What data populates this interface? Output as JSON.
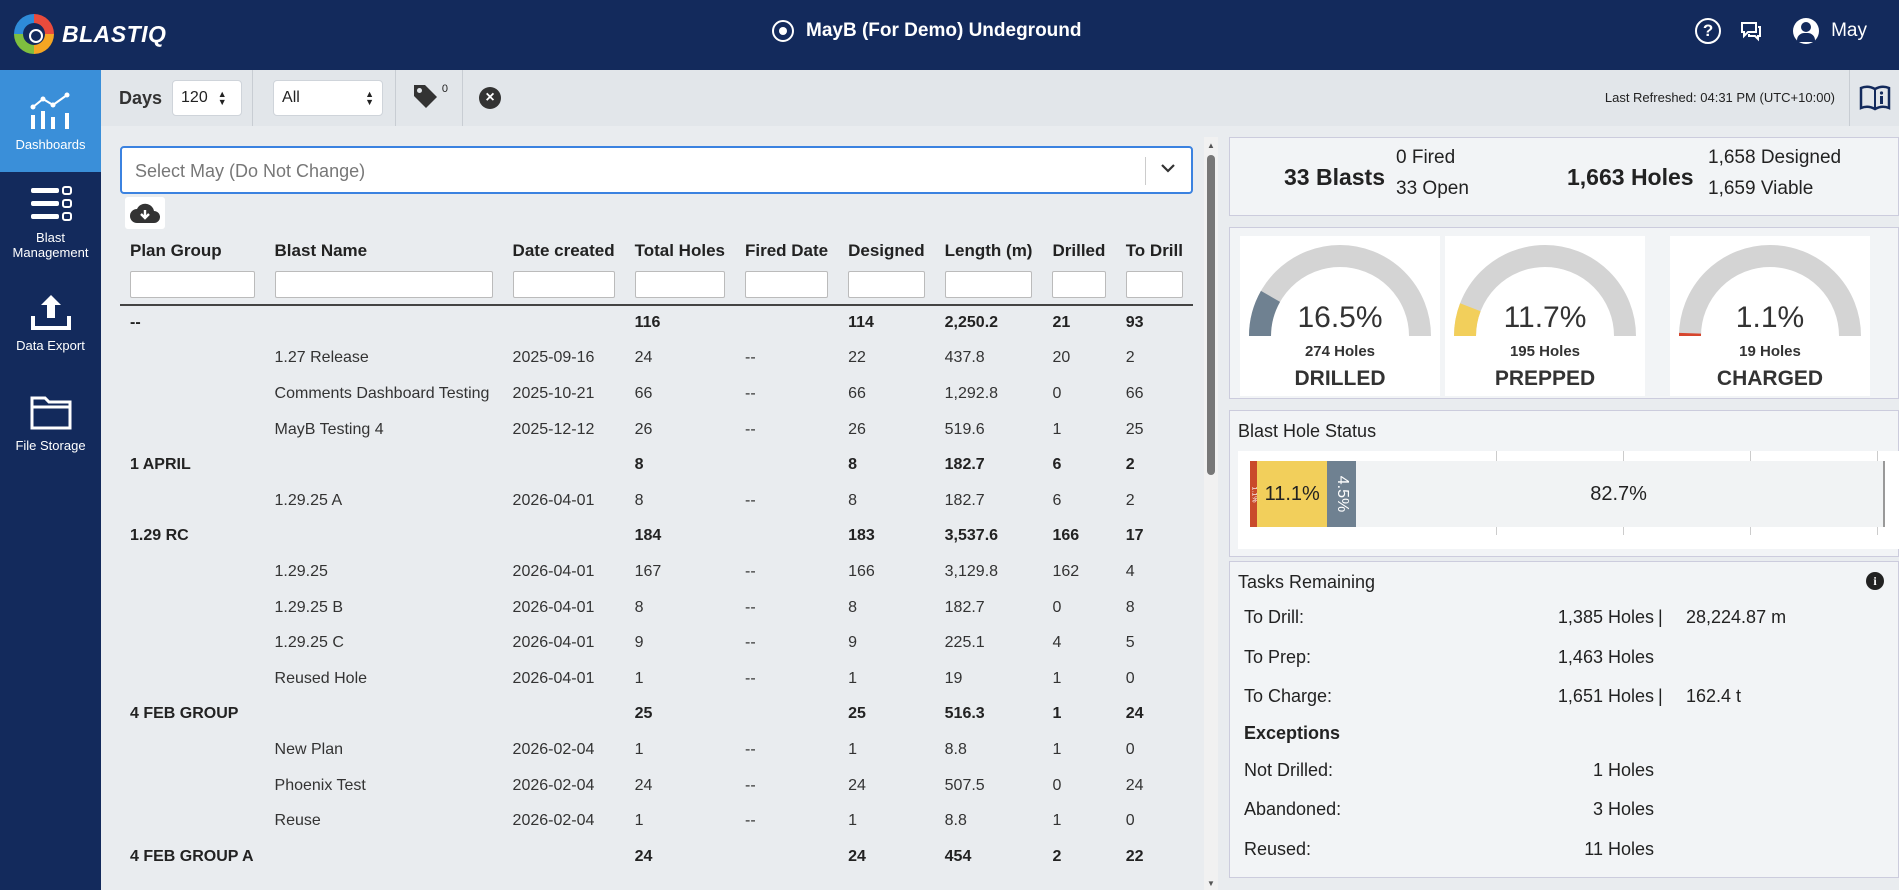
{
  "header": {
    "brand": "BLASTIQ",
    "site_name": "MayB (For Demo) Undeground",
    "user_name": "May"
  },
  "sidebar": {
    "items": [
      {
        "label": "Dashboards",
        "icon": "dashboards-icon",
        "active": true
      },
      {
        "label": "Blast Management",
        "icon": "blast-management-icon",
        "active": false
      },
      {
        "label": "Data Export",
        "icon": "upload-icon",
        "active": false
      },
      {
        "label": "File Storage",
        "icon": "folder-icon",
        "active": false
      }
    ]
  },
  "filters": {
    "days_label": "Days",
    "days_value": "120",
    "status_value": "All",
    "tag_count": "0",
    "last_refreshed": "Last Refreshed: 04:31 PM (UTC+10:00)"
  },
  "table": {
    "select_placeholder": "Select May (Do Not Change)",
    "columns": [
      "Plan Group",
      "Blast Name",
      "Date created",
      "Total Holes",
      "Fired Date",
      "Designed",
      "Length (m)",
      "Drilled",
      "To Drill"
    ],
    "rows": [
      {
        "group": true,
        "cells": [
          "--",
          "",
          "",
          "116",
          "",
          "114",
          "2,250.2",
          "21",
          "93"
        ]
      },
      {
        "group": false,
        "cells": [
          "",
          "1.27 Release",
          "2025-09-16",
          "24",
          "--",
          "22",
          "437.8",
          "20",
          "2"
        ]
      },
      {
        "group": false,
        "cells": [
          "",
          "Comments Dashboard Testing",
          "2025-10-21",
          "66",
          "--",
          "66",
          "1,292.8",
          "0",
          "66"
        ]
      },
      {
        "group": false,
        "cells": [
          "",
          "MayB Testing 4",
          "2025-12-12",
          "26",
          "--",
          "26",
          "519.6",
          "1",
          "25"
        ]
      },
      {
        "group": true,
        "cells": [
          "1 APRIL",
          "",
          "",
          "8",
          "",
          "8",
          "182.7",
          "6",
          "2"
        ]
      },
      {
        "group": false,
        "cells": [
          "",
          "1.29.25 A",
          "2026-04-01",
          "8",
          "--",
          "8",
          "182.7",
          "6",
          "2"
        ]
      },
      {
        "group": true,
        "cells": [
          "1.29 RC",
          "",
          "",
          "184",
          "",
          "183",
          "3,537.6",
          "166",
          "17"
        ]
      },
      {
        "group": false,
        "cells": [
          "",
          "1.29.25",
          "2026-04-01",
          "167",
          "--",
          "166",
          "3,129.8",
          "162",
          "4"
        ]
      },
      {
        "group": false,
        "cells": [
          "",
          "1.29.25 B",
          "2026-04-01",
          "8",
          "--",
          "8",
          "182.7",
          "0",
          "8"
        ]
      },
      {
        "group": false,
        "cells": [
          "",
          "1.29.25 C",
          "2026-04-01",
          "9",
          "--",
          "9",
          "225.1",
          "4",
          "5"
        ]
      },
      {
        "group": false,
        "cells": [
          "",
          "Reused Hole",
          "2026-04-01",
          "1",
          "--",
          "1",
          "19",
          "1",
          "0"
        ]
      },
      {
        "group": true,
        "cells": [
          "4 FEB GROUP",
          "",
          "",
          "25",
          "",
          "25",
          "516.3",
          "1",
          "24"
        ]
      },
      {
        "group": false,
        "cells": [
          "",
          "New Plan",
          "2026-02-04",
          "1",
          "--",
          "1",
          "8.8",
          "1",
          "0"
        ]
      },
      {
        "group": false,
        "cells": [
          "",
          "Phoenix Test",
          "2026-02-04",
          "24",
          "--",
          "24",
          "507.5",
          "0",
          "24"
        ]
      },
      {
        "group": false,
        "cells": [
          "",
          "Reuse",
          "2026-02-04",
          "1",
          "--",
          "1",
          "8.8",
          "1",
          "0"
        ]
      },
      {
        "group": true,
        "cells": [
          "4 FEB GROUP A",
          "",
          "",
          "24",
          "",
          "24",
          "454",
          "2",
          "22"
        ]
      }
    ]
  },
  "summary": {
    "blasts": "33 Blasts",
    "fired": "0 Fired",
    "open": "33 Open",
    "holes": "1,663 Holes",
    "designed": "1,658 Designed",
    "viable": "1,659 Viable"
  },
  "gauges": [
    {
      "pct": "16.5%",
      "fraction": 0.165,
      "holes": "274 Holes",
      "label": "DRILLED",
      "color": "#6f8191"
    },
    {
      "pct": "11.7%",
      "fraction": 0.117,
      "holes": "195 Holes",
      "label": "PREPPED",
      "color": "#f2cf5b"
    },
    {
      "pct": "1.1%",
      "fraction": 0.011,
      "holes": "19 Holes",
      "label": "CHARGED",
      "color": "#d6452d"
    }
  ],
  "blast_hole_status": {
    "title": "Blast Hole Status",
    "segments": [
      {
        "pct": 1.1,
        "label": "1.1%",
        "color": "#c94b2b"
      },
      {
        "pct": 11.1,
        "label": "11.1%",
        "color": "#f2cf5b"
      },
      {
        "pct": 4.5,
        "label": "4.5%",
        "color": "#6f8191"
      },
      {
        "pct": 82.7,
        "label": "82.7%",
        "color": "#f1f3f4"
      }
    ]
  },
  "tasks": {
    "title": "Tasks Remaining",
    "to_drill_label": "To Drill:",
    "to_drill_holes": "1,385 Holes",
    "to_drill_length": "28,224.87 m",
    "to_prep_label": "To Prep:",
    "to_prep_holes": "1,463 Holes",
    "to_charge_label": "To Charge:",
    "to_charge_holes": "1,651 Holes",
    "to_charge_mass": "162.4 t",
    "separator": "|",
    "exceptions_title": "Exceptions",
    "not_drilled_label": "Not Drilled:",
    "not_drilled_value": "1 Holes",
    "abandoned_label": "Abandoned:",
    "abandoned_value": "3 Holes",
    "reused_label": "Reused:",
    "reused_value": "11 Holes"
  }
}
